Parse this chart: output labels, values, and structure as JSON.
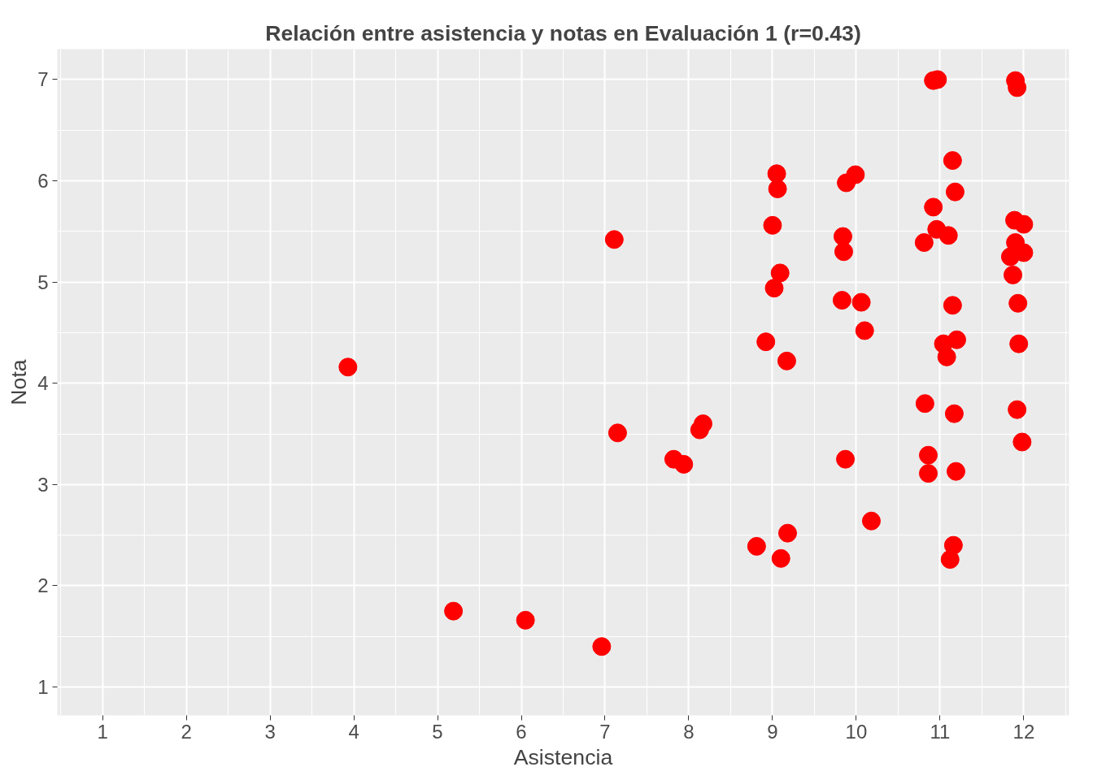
{
  "chart_data": {
    "type": "scatter",
    "title": "Relación entre asistencia y notas en Evaluación 1 (r=0.43)",
    "xlabel": "Asistencia",
    "ylabel": "Nota",
    "x": [
      3.93,
      5.19,
      6.05,
      6.96,
      7.11,
      7.15,
      7.82,
      7.94,
      8.13,
      8.17,
      8.81,
      8.92,
      9.0,
      9.02,
      9.05,
      9.06,
      9.09,
      9.1,
      9.17,
      9.18,
      9.84,
      9.85,
      9.83,
      9.87,
      9.88,
      9.99,
      10.06,
      10.1,
      10.18,
      10.81,
      10.82,
      10.86,
      10.86,
      10.92,
      10.97,
      10.92,
      10.96,
      11.04,
      11.08,
      11.1,
      11.12,
      11.15,
      11.15,
      11.16,
      11.17,
      11.18,
      11.19,
      11.2,
      11.9,
      11.92,
      11.89,
      12.0,
      11.9,
      11.84,
      12.0,
      11.87,
      11.93,
      11.94,
      11.92,
      11.98
    ],
    "series": [
      {
        "color": "#ff0000",
        "values": [
          4.16,
          1.75,
          1.66,
          1.4,
          5.42,
          3.51,
          3.25,
          3.2,
          3.54,
          3.6,
          2.39,
          4.41,
          5.56,
          4.94,
          6.07,
          5.92,
          5.09,
          2.27,
          4.22,
          2.52,
          5.45,
          5.3,
          4.82,
          3.25,
          5.98,
          6.06,
          4.8,
          4.52,
          2.64,
          5.39,
          3.8,
          3.29,
          3.11,
          6.99,
          7.0,
          5.74,
          5.52,
          4.39,
          4.26,
          5.46,
          2.26,
          6.2,
          4.77,
          2.4,
          3.7,
          5.89,
          3.13,
          4.43,
          6.99,
          6.92,
          5.61,
          5.57,
          5.39,
          5.25,
          5.29,
          5.07,
          4.79,
          4.39,
          3.74,
          3.42
        ]
      }
    ],
    "xlim": [
      0.46,
      12.54
    ],
    "ylim": [
      0.72,
      7.3
    ],
    "xticks": [
      1,
      2,
      3,
      4,
      5,
      6,
      7,
      8,
      9,
      10,
      11,
      12
    ],
    "yticks": [
      1,
      2,
      3,
      4,
      5,
      6,
      7
    ],
    "grid": true,
    "marker": "circle"
  }
}
